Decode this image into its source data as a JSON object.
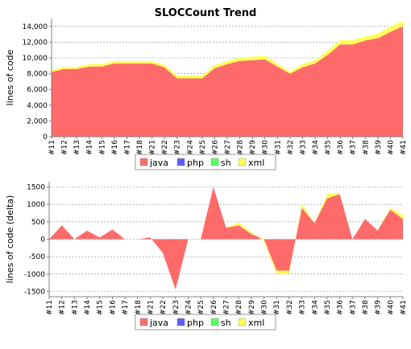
{
  "title": "SLOCCount Trend",
  "colors": {
    "java": "#ff6b6b",
    "php": "#5b5bff",
    "sh": "#5bff5b",
    "xml": "#ffff5b",
    "grid": "#888888",
    "axis": "#808080"
  },
  "chart_data": [
    {
      "type": "area",
      "stacked": true,
      "ylabel": "lines of code",
      "ylim": [
        0,
        15000
      ],
      "yticks": [
        0,
        2000,
        4000,
        6000,
        8000,
        10000,
        12000,
        14000
      ],
      "ytick_labels": [
        "0",
        "2,000",
        "4,000",
        "6,000",
        "8,000",
        "10,000",
        "12,000",
        "14,000"
      ],
      "categories": [
        "#11",
        "#12",
        "#13",
        "#14",
        "#15",
        "#16",
        "#17",
        "#18",
        "#21",
        "#22",
        "#23",
        "#24",
        "#25",
        "#26",
        "#27",
        "#28",
        "#29",
        "#30",
        "#31",
        "#32",
        "#33",
        "#34",
        "#35",
        "#36",
        "#37",
        "#38",
        "#39",
        "#40",
        "#41"
      ],
      "series": [
        {
          "name": "java",
          "values": [
            8200,
            8600,
            8600,
            8900,
            8900,
            9300,
            9300,
            9300,
            9300,
            8800,
            7400,
            7400,
            7400,
            8700,
            9200,
            9600,
            9700,
            9800,
            8900,
            8000,
            8800,
            9300,
            10400,
            11700,
            11700,
            12200,
            12500,
            13300,
            14000
          ]
        },
        {
          "name": "php",
          "values": [
            0,
            0,
            0,
            0,
            0,
            0,
            0,
            0,
            0,
            0,
            0,
            0,
            0,
            0,
            0,
            0,
            0,
            0,
            0,
            0,
            0,
            0,
            0,
            0,
            0,
            0,
            0,
            0,
            0
          ]
        },
        {
          "name": "sh",
          "values": [
            0,
            0,
            0,
            0,
            0,
            0,
            0,
            0,
            0,
            0,
            0,
            0,
            0,
            0,
            0,
            0,
            0,
            0,
            0,
            0,
            0,
            0,
            0,
            0,
            0,
            0,
            0,
            0,
            0
          ]
        },
        {
          "name": "xml",
          "values": [
            250,
            250,
            250,
            300,
            300,
            300,
            300,
            300,
            300,
            300,
            350,
            350,
            350,
            400,
            400,
            450,
            450,
            500,
            350,
            300,
            400,
            400,
            500,
            550,
            550,
            550,
            600,
            650,
            700
          ]
        }
      ]
    },
    {
      "type": "area",
      "stacked": true,
      "ylabel": "lines of code (delta)",
      "ylim": [
        -1650,
        1650
      ],
      "yticks": [
        -1500,
        -1000,
        -500,
        0,
        500,
        1000,
        1500
      ],
      "ytick_labels": [
        "-1500",
        "-1000",
        "-500",
        "0",
        "500",
        "1000",
        "1500"
      ],
      "categories": [
        "#11",
        "#12",
        "#13",
        "#14",
        "#15",
        "#16",
        "#17",
        "#18",
        "#21",
        "#22",
        "#23",
        "#24",
        "#25",
        "#26",
        "#27",
        "#28",
        "#29",
        "#30",
        "#31",
        "#32",
        "#33",
        "#34",
        "#35",
        "#36",
        "#37",
        "#38",
        "#39",
        "#40",
        "#41"
      ],
      "series": [
        {
          "name": "java",
          "values": [
            0,
            400,
            0,
            250,
            50,
            280,
            0,
            0,
            50,
            -400,
            -1450,
            0,
            0,
            1500,
            330,
            400,
            150,
            0,
            -900,
            -900,
            900,
            460,
            1170,
            1300,
            0,
            580,
            250,
            850,
            580
          ]
        },
        {
          "name": "php",
          "values": [
            0,
            0,
            0,
            0,
            0,
            0,
            0,
            0,
            0,
            0,
            0,
            0,
            0,
            0,
            0,
            0,
            0,
            0,
            0,
            0,
            0,
            0,
            0,
            0,
            0,
            0,
            0,
            0,
            0
          ]
        },
        {
          "name": "sh",
          "values": [
            0,
            0,
            0,
            0,
            0,
            0,
            0,
            0,
            0,
            0,
            0,
            0,
            0,
            0,
            0,
            0,
            0,
            0,
            0,
            0,
            0,
            0,
            0,
            0,
            0,
            0,
            0,
            0,
            0
          ]
        },
        {
          "name": "xml",
          "values": [
            0,
            0,
            0,
            0,
            0,
            0,
            0,
            0,
            0,
            0,
            0,
            0,
            0,
            0,
            0,
            80,
            50,
            -50,
            -100,
            -100,
            120,
            0,
            130,
            20,
            0,
            0,
            0,
            50,
            120
          ]
        }
      ]
    }
  ],
  "legend": [
    "java",
    "php",
    "sh",
    "xml"
  ]
}
